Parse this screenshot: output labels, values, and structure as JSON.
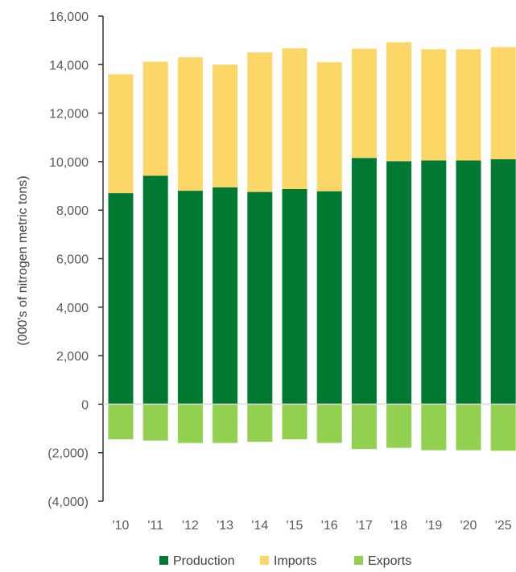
{
  "chart_data": {
    "type": "bar",
    "stacked": true,
    "categories": [
      "'10",
      "'11",
      "'12",
      "'13",
      "'14",
      "'15",
      "'16",
      "'17",
      "'18",
      "'19",
      "'20",
      "'25"
    ],
    "series": [
      {
        "name": "Production",
        "color": "#007a33",
        "values": [
          8700,
          9420,
          8800,
          8940,
          8750,
          8870,
          8780,
          10150,
          10020,
          10050,
          10050,
          10100
        ]
      },
      {
        "name": "Imports",
        "color": "#fcd667",
        "values": [
          4900,
          4700,
          5500,
          5060,
          5750,
          5800,
          5320,
          4500,
          4900,
          4580,
          4580,
          4620
        ]
      },
      {
        "name": "Exports",
        "color": "#92d050",
        "values": [
          -1450,
          -1500,
          -1600,
          -1600,
          -1550,
          -1450,
          -1600,
          -1850,
          -1800,
          -1900,
          -1900,
          -1920
        ]
      }
    ],
    "ylabel": "(000's of nitrogen metric tons)",
    "ylim": [
      -4000,
      16000
    ],
    "yticks": [
      -4000,
      -2000,
      0,
      2000,
      4000,
      6000,
      8000,
      10000,
      12000,
      14000,
      16000
    ],
    "ytick_labels": [
      "(4,000)",
      "(2,000)",
      "0",
      "2,000",
      "4,000",
      "6,000",
      "8,000",
      "10,000",
      "12,000",
      "14,000",
      "16,000"
    ],
    "grid": false,
    "legend_position": "bottom"
  }
}
